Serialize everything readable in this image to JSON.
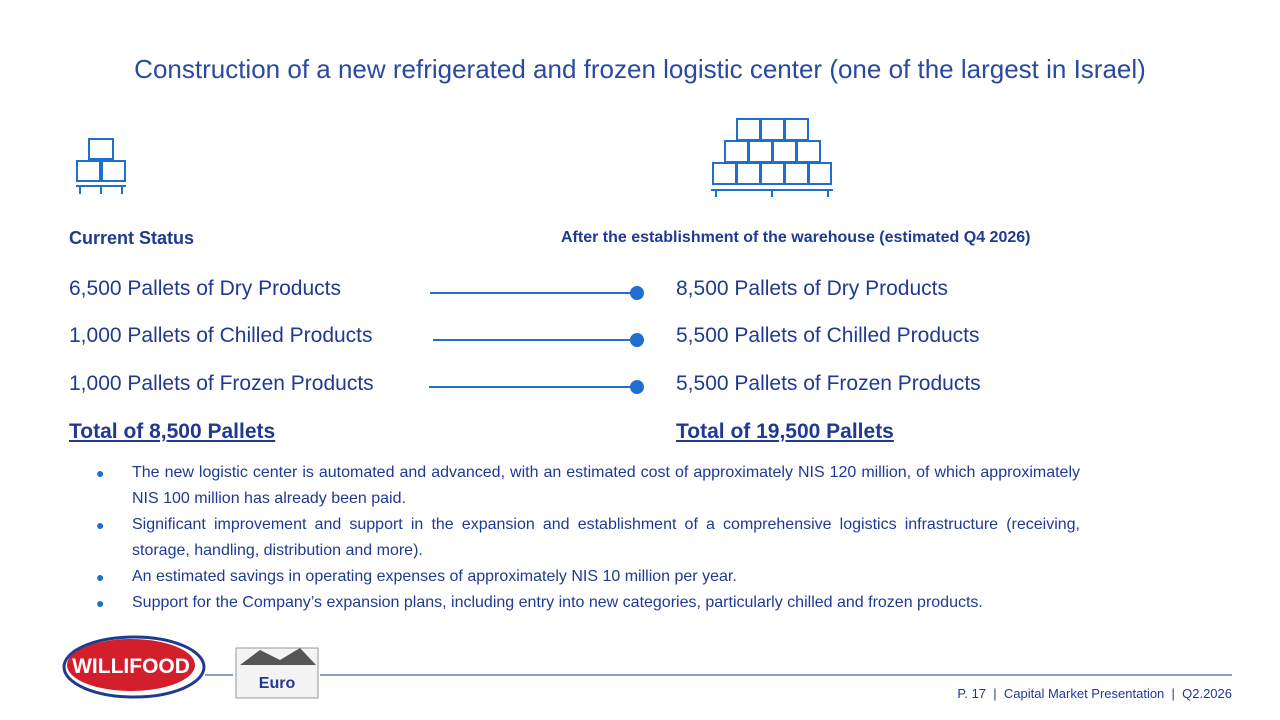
{
  "header": {
    "title": "Construction of a new refrigerated and frozen logistic center (one of the largest in Israel)"
  },
  "current": {
    "heading": "Current Status",
    "items": [
      "6,500 Pallets of Dry Products",
      "1,000 Pallets of Chilled Products",
      "1,000 Pallets of Frozen Products"
    ],
    "total": "Total of 8,500 Pallets"
  },
  "after": {
    "heading": "After the establishment of the warehouse (estimated Q4 2026)",
    "items": [
      "8,500 Pallets of Dry Products",
      "5,500 Pallets of Chilled Products",
      "5,500 Pallets of Frozen Products"
    ],
    "total": "Total of 19,500 Pallets"
  },
  "bullets": [
    "The new logistic center is automated and advanced, with an estimated cost of approximately NIS 120 million, of which approximately NIS 100 million has already been paid.",
    "Significant improvement and support in the expansion and establishment of a comprehensive logistics infrastructure (receiving, storage, handling, distribution and more).",
    "An estimated savings in operating expenses of approximately NIS 10 million per year.",
    "Support for the Company’s expansion plans, including entry into new categories, particularly chilled and frozen products."
  ],
  "logos": [
    "WILLIFOOD",
    "Euro"
  ],
  "footer": [
    "P. 17",
    "Capital Market Presentation",
    "Q2.2026"
  ]
}
